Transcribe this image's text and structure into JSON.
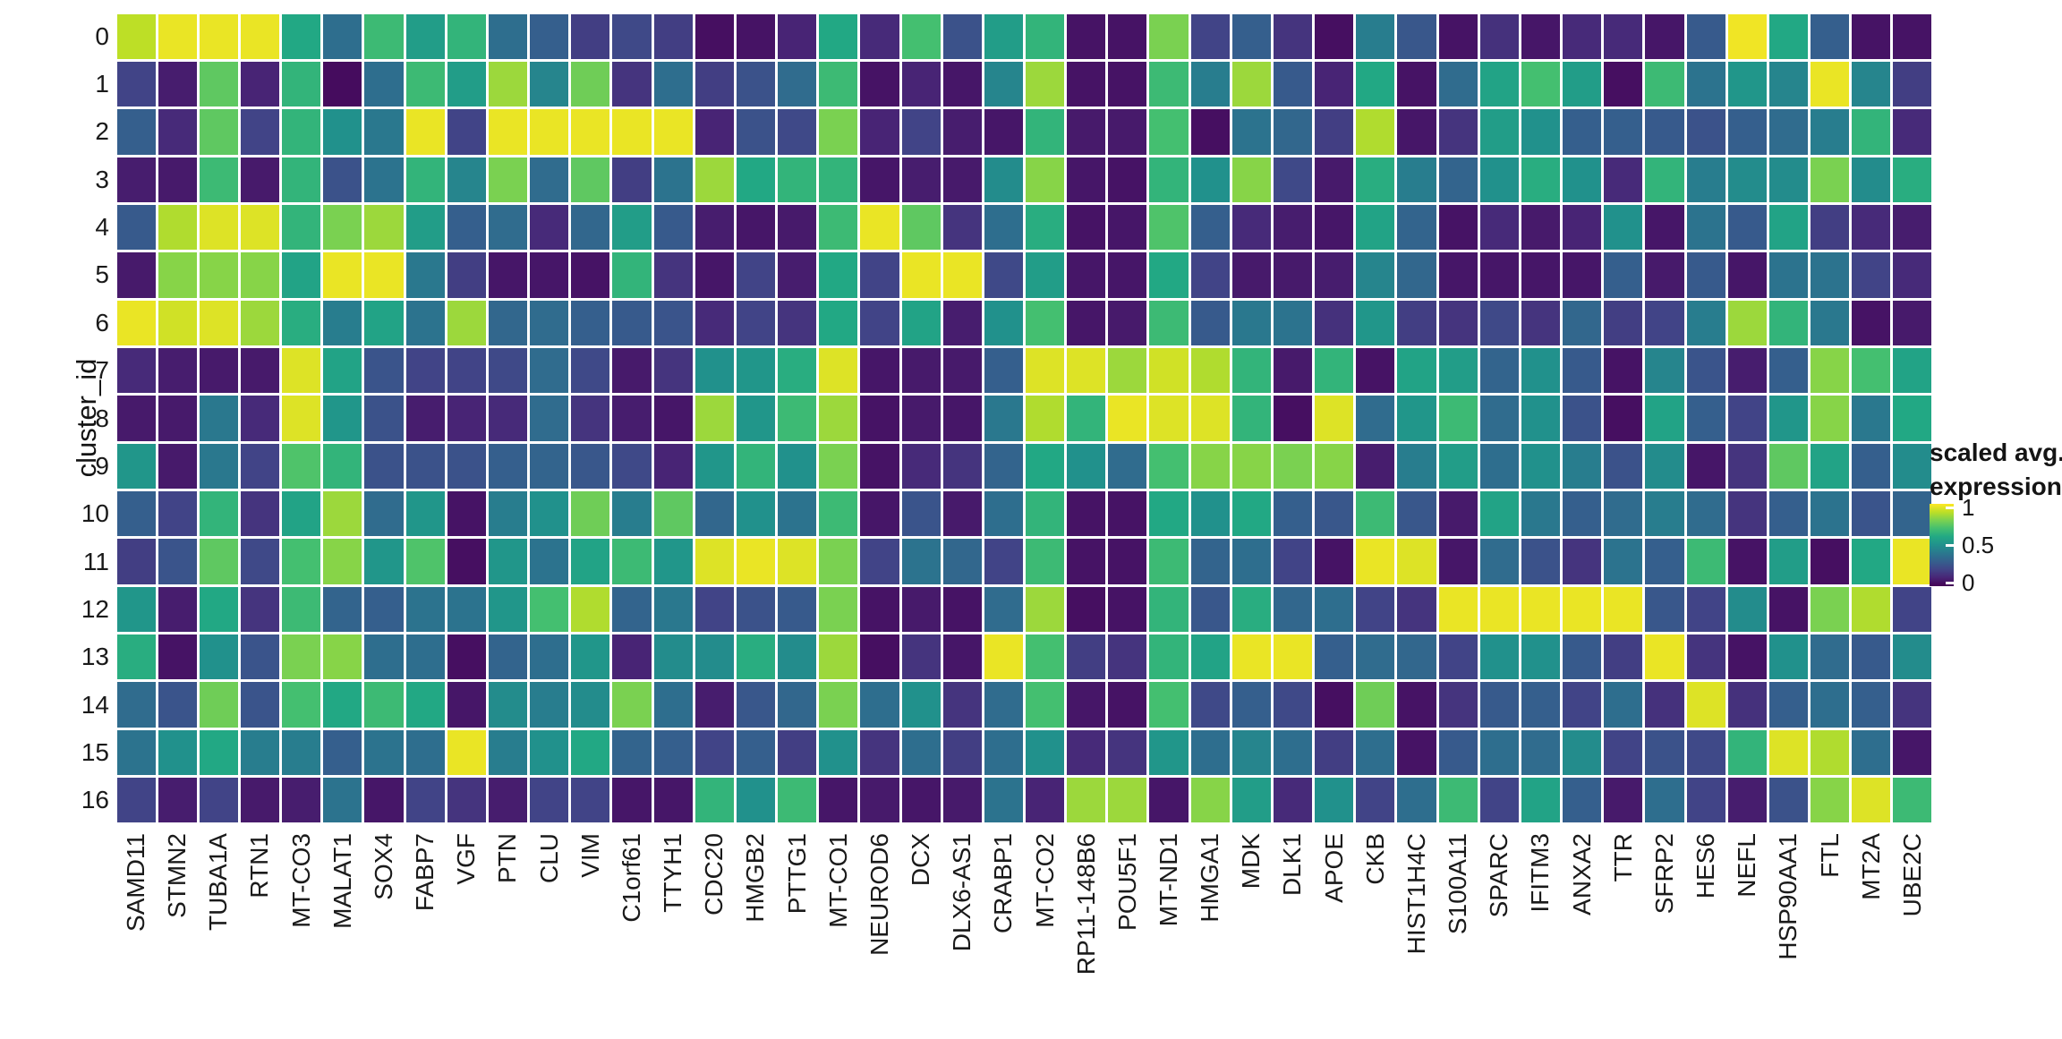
{
  "figure": {
    "y_axis_title": "cluster_id",
    "legend": {
      "title_line1": "scaled avg.",
      "title_line2": "expression",
      "tick_labels": [
        "1",
        "0.5",
        "0"
      ],
      "tick_values": [
        1,
        0.5,
        0
      ]
    },
    "palette_viridis_stops": [
      "#440154",
      "#482475",
      "#414487",
      "#355f8d",
      "#2a788e",
      "#21918c",
      "#22a884",
      "#44bf70",
      "#7ad151",
      "#bddf26",
      "#fde725"
    ]
  },
  "chart_data": {
    "type": "heatmap",
    "title": "",
    "xlabel": "",
    "ylabel": "cluster_id",
    "legend_title": "scaled avg. expression",
    "value_range": [
      0,
      1
    ],
    "legend_ticks": [
      0,
      0.5,
      1
    ],
    "x_categories": [
      "SAMD11",
      "STMN2",
      "TUBA1A",
      "RTN1",
      "MT-CO3",
      "MALAT1",
      "SOX4",
      "FABP7",
      "VGF",
      "PTN",
      "CLU",
      "VIM",
      "C1orf61",
      "TTYH1",
      "CDC20",
      "HMGB2",
      "PTTG1",
      "MT-CO1",
      "NEUROD6",
      "DCX",
      "DLX6-AS1",
      "CRABP1",
      "MT-CO2",
      "RP11-148B6",
      "POU5F1",
      "MT-ND1",
      "HMGA1",
      "MDK",
      "DLK1",
      "APOE",
      "CKB",
      "HIST1H4C",
      "S100A11",
      "SPARC",
      "IFITM3",
      "ANXA2",
      "TTR",
      "SFRP2",
      "HES6",
      "NEFL",
      "HSP90AA1",
      "FTL",
      "MT2A",
      "UBE2C"
    ],
    "y_categories": [
      "0",
      "1",
      "2",
      "3",
      "4",
      "5",
      "6",
      "7",
      "8",
      "9",
      "10",
      "11",
      "12",
      "13",
      "14",
      "15",
      "16"
    ],
    "values": [
      [
        0.9,
        0.97,
        0.97,
        0.97,
        0.6,
        0.36,
        0.68,
        0.55,
        0.65,
        0.36,
        0.3,
        0.18,
        0.22,
        0.18,
        0.04,
        0.05,
        0.1,
        0.6,
        0.12,
        0.7,
        0.25,
        0.55,
        0.65,
        0.05,
        0.05,
        0.8,
        0.2,
        0.3,
        0.15,
        0.04,
        0.42,
        0.27,
        0.05,
        0.14,
        0.06,
        0.12,
        0.12,
        0.06,
        0.28,
        0.98,
        0.6,
        0.3,
        0.05,
        0.05
      ],
      [
        0.2,
        0.08,
        0.75,
        0.1,
        0.65,
        0.03,
        0.36,
        0.68,
        0.55,
        0.85,
        0.45,
        0.78,
        0.15,
        0.36,
        0.18,
        0.25,
        0.35,
        0.68,
        0.05,
        0.1,
        0.06,
        0.45,
        0.85,
        0.05,
        0.05,
        0.68,
        0.42,
        0.85,
        0.28,
        0.1,
        0.6,
        0.05,
        0.35,
        0.58,
        0.7,
        0.55,
        0.04,
        0.68,
        0.38,
        0.52,
        0.45,
        0.97,
        0.45,
        0.18
      ],
      [
        0.3,
        0.12,
        0.75,
        0.2,
        0.65,
        0.5,
        0.4,
        0.97,
        0.2,
        0.97,
        0.97,
        0.97,
        0.97,
        0.97,
        0.1,
        0.25,
        0.22,
        0.8,
        0.1,
        0.2,
        0.08,
        0.06,
        0.65,
        0.07,
        0.07,
        0.7,
        0.04,
        0.38,
        0.33,
        0.18,
        0.88,
        0.06,
        0.15,
        0.55,
        0.5,
        0.3,
        0.3,
        0.28,
        0.25,
        0.3,
        0.35,
        0.42,
        0.65,
        0.12
      ],
      [
        0.08,
        0.07,
        0.68,
        0.07,
        0.65,
        0.25,
        0.38,
        0.65,
        0.45,
        0.8,
        0.35,
        0.75,
        0.18,
        0.38,
        0.85,
        0.6,
        0.65,
        0.65,
        0.06,
        0.08,
        0.07,
        0.48,
        0.82,
        0.06,
        0.05,
        0.65,
        0.5,
        0.82,
        0.22,
        0.07,
        0.62,
        0.42,
        0.32,
        0.5,
        0.62,
        0.5,
        0.12,
        0.65,
        0.42,
        0.48,
        0.48,
        0.8,
        0.48,
        0.62
      ],
      [
        0.28,
        0.88,
        0.95,
        0.95,
        0.65,
        0.8,
        0.85,
        0.55,
        0.3,
        0.35,
        0.12,
        0.33,
        0.55,
        0.28,
        0.08,
        0.06,
        0.07,
        0.68,
        0.97,
        0.75,
        0.15,
        0.36,
        0.62,
        0.05,
        0.06,
        0.72,
        0.3,
        0.12,
        0.08,
        0.06,
        0.58,
        0.32,
        0.05,
        0.12,
        0.07,
        0.1,
        0.5,
        0.06,
        0.38,
        0.28,
        0.58,
        0.18,
        0.12,
        0.08
      ],
      [
        0.07,
        0.82,
        0.82,
        0.82,
        0.58,
        0.97,
        0.97,
        0.4,
        0.18,
        0.06,
        0.06,
        0.05,
        0.65,
        0.15,
        0.06,
        0.2,
        0.08,
        0.6,
        0.2,
        0.97,
        0.97,
        0.22,
        0.55,
        0.06,
        0.06,
        0.6,
        0.2,
        0.07,
        0.07,
        0.08,
        0.45,
        0.33,
        0.06,
        0.06,
        0.06,
        0.06,
        0.3,
        0.07,
        0.28,
        0.06,
        0.38,
        0.38,
        0.2,
        0.12
      ],
      [
        0.97,
        0.93,
        0.95,
        0.85,
        0.62,
        0.42,
        0.58,
        0.38,
        0.85,
        0.33,
        0.35,
        0.3,
        0.28,
        0.26,
        0.12,
        0.2,
        0.15,
        0.6,
        0.2,
        0.58,
        0.08,
        0.5,
        0.7,
        0.06,
        0.07,
        0.68,
        0.28,
        0.4,
        0.38,
        0.14,
        0.52,
        0.18,
        0.15,
        0.22,
        0.15,
        0.33,
        0.18,
        0.2,
        0.42,
        0.85,
        0.65,
        0.4,
        0.05,
        0.07
      ],
      [
        0.12,
        0.08,
        0.07,
        0.07,
        0.95,
        0.58,
        0.26,
        0.2,
        0.2,
        0.22,
        0.35,
        0.22,
        0.07,
        0.15,
        0.5,
        0.52,
        0.62,
        0.95,
        0.06,
        0.07,
        0.07,
        0.3,
        0.95,
        0.95,
        0.85,
        0.93,
        0.88,
        0.65,
        0.07,
        0.65,
        0.05,
        0.58,
        0.55,
        0.32,
        0.5,
        0.28,
        0.05,
        0.45,
        0.26,
        0.08,
        0.3,
        0.82,
        0.7,
        0.58
      ],
      [
        0.07,
        0.07,
        0.4,
        0.12,
        0.95,
        0.52,
        0.25,
        0.08,
        0.1,
        0.12,
        0.35,
        0.15,
        0.08,
        0.06,
        0.85,
        0.52,
        0.68,
        0.85,
        0.05,
        0.07,
        0.06,
        0.4,
        0.88,
        0.65,
        0.97,
        0.95,
        0.95,
        0.65,
        0.04,
        0.95,
        0.35,
        0.52,
        0.68,
        0.35,
        0.5,
        0.25,
        0.04,
        0.58,
        0.3,
        0.2,
        0.52,
        0.82,
        0.4,
        0.6
      ],
      [
        0.52,
        0.07,
        0.4,
        0.2,
        0.72,
        0.65,
        0.25,
        0.25,
        0.25,
        0.3,
        0.32,
        0.27,
        0.22,
        0.1,
        0.52,
        0.65,
        0.5,
        0.8,
        0.05,
        0.12,
        0.15,
        0.32,
        0.6,
        0.5,
        0.35,
        0.7,
        0.82,
        0.82,
        0.8,
        0.82,
        0.08,
        0.42,
        0.55,
        0.36,
        0.5,
        0.42,
        0.25,
        0.48,
        0.06,
        0.15,
        0.75,
        0.58,
        0.3,
        0.48
      ],
      [
        0.3,
        0.2,
        0.65,
        0.15,
        0.58,
        0.85,
        0.35,
        0.52,
        0.05,
        0.42,
        0.5,
        0.78,
        0.42,
        0.75,
        0.33,
        0.5,
        0.38,
        0.68,
        0.06,
        0.26,
        0.07,
        0.36,
        0.65,
        0.05,
        0.05,
        0.6,
        0.5,
        0.6,
        0.3,
        0.27,
        0.68,
        0.27,
        0.07,
        0.58,
        0.4,
        0.3,
        0.35,
        0.42,
        0.35,
        0.15,
        0.3,
        0.38,
        0.26,
        0.32
      ],
      [
        0.18,
        0.26,
        0.75,
        0.22,
        0.7,
        0.82,
        0.52,
        0.72,
        0.04,
        0.52,
        0.38,
        0.58,
        0.68,
        0.52,
        0.95,
        0.97,
        0.95,
        0.8,
        0.2,
        0.38,
        0.33,
        0.2,
        0.68,
        0.05,
        0.05,
        0.68,
        0.32,
        0.36,
        0.2,
        0.05,
        0.97,
        0.95,
        0.06,
        0.35,
        0.25,
        0.15,
        0.38,
        0.3,
        0.68,
        0.05,
        0.55,
        0.04,
        0.6,
        0.97
      ],
      [
        0.52,
        0.08,
        0.6,
        0.15,
        0.68,
        0.32,
        0.3,
        0.38,
        0.38,
        0.52,
        0.7,
        0.88,
        0.32,
        0.4,
        0.2,
        0.25,
        0.28,
        0.8,
        0.05,
        0.07,
        0.05,
        0.35,
        0.85,
        0.04,
        0.05,
        0.65,
        0.27,
        0.62,
        0.33,
        0.36,
        0.2,
        0.15,
        0.97,
        0.97,
        0.97,
        0.97,
        0.97,
        0.27,
        0.2,
        0.48,
        0.05,
        0.8,
        0.88,
        0.2
      ],
      [
        0.62,
        0.05,
        0.5,
        0.26,
        0.8,
        0.82,
        0.36,
        0.36,
        0.04,
        0.32,
        0.36,
        0.52,
        0.1,
        0.48,
        0.48,
        0.62,
        0.48,
        0.85,
        0.04,
        0.15,
        0.06,
        0.97,
        0.7,
        0.18,
        0.15,
        0.65,
        0.58,
        0.97,
        0.97,
        0.3,
        0.35,
        0.33,
        0.2,
        0.5,
        0.5,
        0.28,
        0.18,
        0.97,
        0.15,
        0.05,
        0.5,
        0.35,
        0.28,
        0.48
      ],
      [
        0.35,
        0.26,
        0.78,
        0.26,
        0.7,
        0.6,
        0.68,
        0.6,
        0.06,
        0.48,
        0.42,
        0.48,
        0.8,
        0.36,
        0.08,
        0.27,
        0.33,
        0.8,
        0.36,
        0.5,
        0.15,
        0.35,
        0.7,
        0.06,
        0.05,
        0.7,
        0.22,
        0.3,
        0.22,
        0.04,
        0.78,
        0.05,
        0.15,
        0.28,
        0.3,
        0.2,
        0.36,
        0.14,
        0.95,
        0.14,
        0.3,
        0.36,
        0.3,
        0.15
      ],
      [
        0.38,
        0.5,
        0.6,
        0.42,
        0.42,
        0.3,
        0.38,
        0.36,
        0.97,
        0.42,
        0.5,
        0.6,
        0.32,
        0.3,
        0.2,
        0.3,
        0.18,
        0.5,
        0.15,
        0.36,
        0.18,
        0.36,
        0.5,
        0.12,
        0.15,
        0.52,
        0.36,
        0.45,
        0.36,
        0.18,
        0.36,
        0.05,
        0.28,
        0.36,
        0.35,
        0.48,
        0.2,
        0.25,
        0.22,
        0.65,
        0.95,
        0.88,
        0.36,
        0.06
      ],
      [
        0.2,
        0.08,
        0.2,
        0.07,
        0.08,
        0.38,
        0.06,
        0.2,
        0.15,
        0.08,
        0.2,
        0.2,
        0.06,
        0.06,
        0.65,
        0.5,
        0.68,
        0.06,
        0.07,
        0.06,
        0.07,
        0.38,
        0.1,
        0.85,
        0.85,
        0.06,
        0.82,
        0.55,
        0.12,
        0.5,
        0.2,
        0.36,
        0.68,
        0.2,
        0.58,
        0.3,
        0.07,
        0.36,
        0.2,
        0.08,
        0.25,
        0.82,
        0.95,
        0.68
      ]
    ]
  }
}
